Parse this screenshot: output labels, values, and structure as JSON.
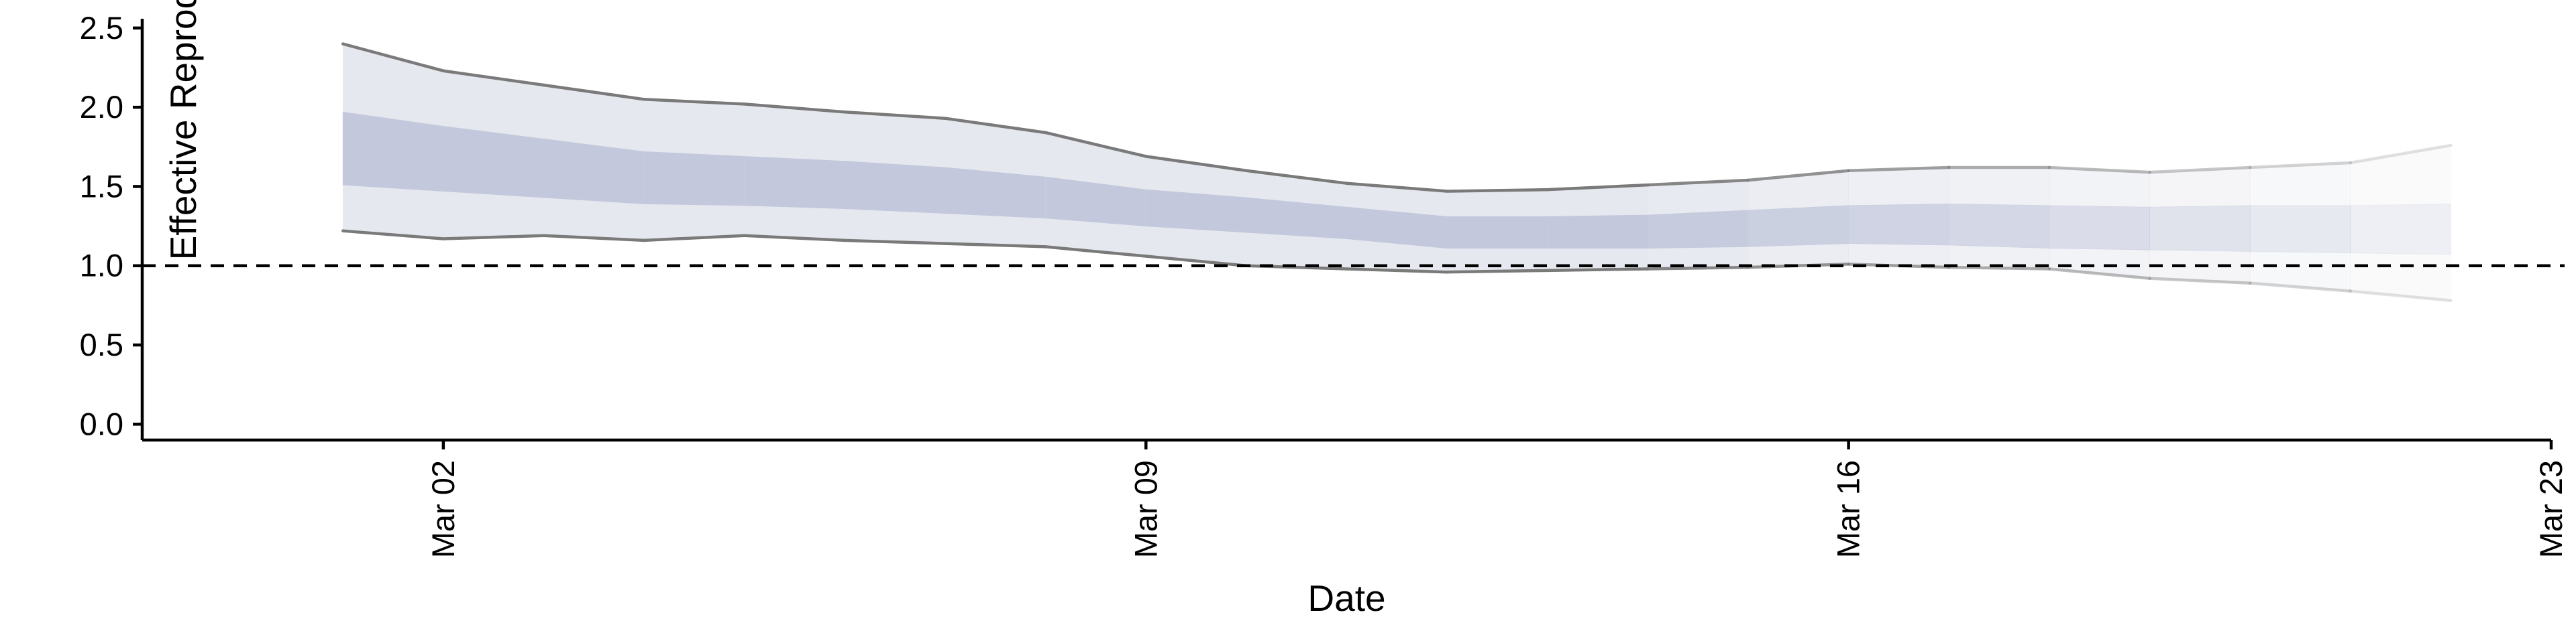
{
  "chart_data": {
    "type": "area",
    "title": "",
    "xlabel": "Date",
    "ylabel": "Effective Reproduction no",
    "x_ticks": [
      {
        "date": "2020-03-02",
        "label": "Mar 02"
      },
      {
        "date": "2020-03-09",
        "label": "Mar 09"
      },
      {
        "date": "2020-03-16",
        "label": "Mar 16"
      },
      {
        "date": "2020-03-23",
        "label": "Mar 23"
      }
    ],
    "y_ticks": [
      0.0,
      0.5,
      1.0,
      1.5,
      2.0,
      2.5
    ],
    "y_tick_labels": [
      "0.0",
      "0.5",
      "1.0",
      "1.5",
      "2.0",
      "2.5"
    ],
    "xlim": [
      "2020-02-28",
      "2020-03-23"
    ],
    "ylim": [
      -0.1,
      2.55
    ],
    "reference_line": {
      "y": 1.0,
      "style": "dashed"
    },
    "grid": false,
    "legend": "none",
    "colors": {
      "outer_band": "#e6e8ef",
      "inner_band": "#c3c8dc",
      "outer_edge": "#7a7a7a"
    },
    "x": [
      "2020-03-01",
      "2020-03-02",
      "2020-03-03",
      "2020-03-04",
      "2020-03-05",
      "2020-03-06",
      "2020-03-07",
      "2020-03-08",
      "2020-03-09",
      "2020-03-10",
      "2020-03-11",
      "2020-03-12",
      "2020-03-13",
      "2020-03-14",
      "2020-03-15",
      "2020-03-16",
      "2020-03-17",
      "2020-03-18",
      "2020-03-19",
      "2020-03-20",
      "2020-03-21",
      "2020-03-22"
    ],
    "series": [
      {
        "role": "outer_upper",
        "values": [
          2.4,
          2.23,
          2.14,
          2.05,
          2.02,
          1.97,
          1.93,
          1.84,
          1.69,
          1.6,
          1.52,
          1.47,
          1.48,
          1.51,
          1.54,
          1.6,
          1.62,
          1.62,
          1.59,
          1.62,
          1.65,
          1.76
        ]
      },
      {
        "role": "inner_upper",
        "values": [
          1.97,
          1.88,
          1.8,
          1.72,
          1.69,
          1.66,
          1.62,
          1.56,
          1.48,
          1.43,
          1.37,
          1.31,
          1.31,
          1.32,
          1.35,
          1.38,
          1.39,
          1.38,
          1.37,
          1.38,
          1.38,
          1.39
        ]
      },
      {
        "role": "inner_lower",
        "values": [
          1.51,
          1.47,
          1.43,
          1.39,
          1.38,
          1.36,
          1.33,
          1.3,
          1.25,
          1.21,
          1.17,
          1.11,
          1.11,
          1.11,
          1.12,
          1.14,
          1.13,
          1.11,
          1.1,
          1.09,
          1.08,
          1.07
        ]
      },
      {
        "role": "outer_lower",
        "values": [
          1.22,
          1.17,
          1.19,
          1.16,
          1.19,
          1.16,
          1.14,
          1.12,
          1.06,
          1.0,
          0.98,
          0.96,
          0.97,
          0.98,
          0.99,
          1.01,
          0.99,
          0.98,
          0.92,
          0.89,
          0.84,
          0.78
        ]
      }
    ],
    "fade_from_date": "2020-03-14"
  }
}
